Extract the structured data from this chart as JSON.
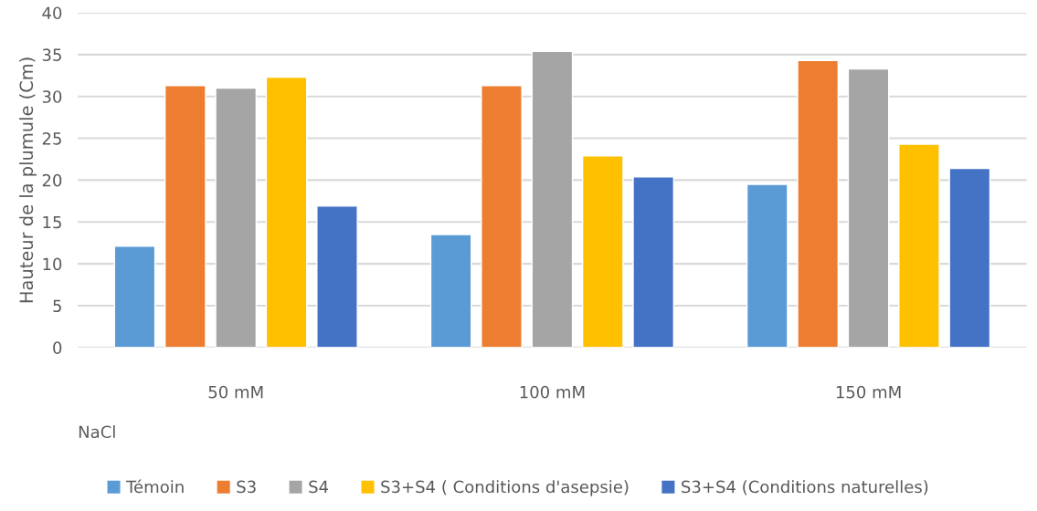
{
  "chart_data": {
    "type": "bar",
    "ylabel": "Hauteur de la plumule (Cm)",
    "xlabel": "NaCl",
    "categories": [
      "50 mM",
      "100 mM",
      "150 mM"
    ],
    "series": [
      {
        "name": "Témoin",
        "color": "#5b9bd5",
        "values": [
          12.1,
          13.5,
          19.5
        ]
      },
      {
        "name": "S3",
        "color": "#ed7d31",
        "values": [
          31.3,
          31.3,
          34.3
        ]
      },
      {
        "name": "S4",
        "color": "#a5a5a5",
        "values": [
          31.0,
          35.4,
          33.3
        ]
      },
      {
        "name": "S3+S4 ( Conditions d'asepsie)",
        "color": "#ffc000",
        "values": [
          32.3,
          22.9,
          24.3
        ]
      },
      {
        "name": "S3+S4 (Conditions naturelles)",
        "color": "#4472c4",
        "values": [
          16.9,
          20.4,
          21.4
        ]
      }
    ],
    "ylim": [
      0,
      40
    ],
    "yticks": [
      0,
      5,
      10,
      15,
      20,
      25,
      30,
      35,
      40
    ],
    "grid": "y",
    "legend": "bottom"
  }
}
